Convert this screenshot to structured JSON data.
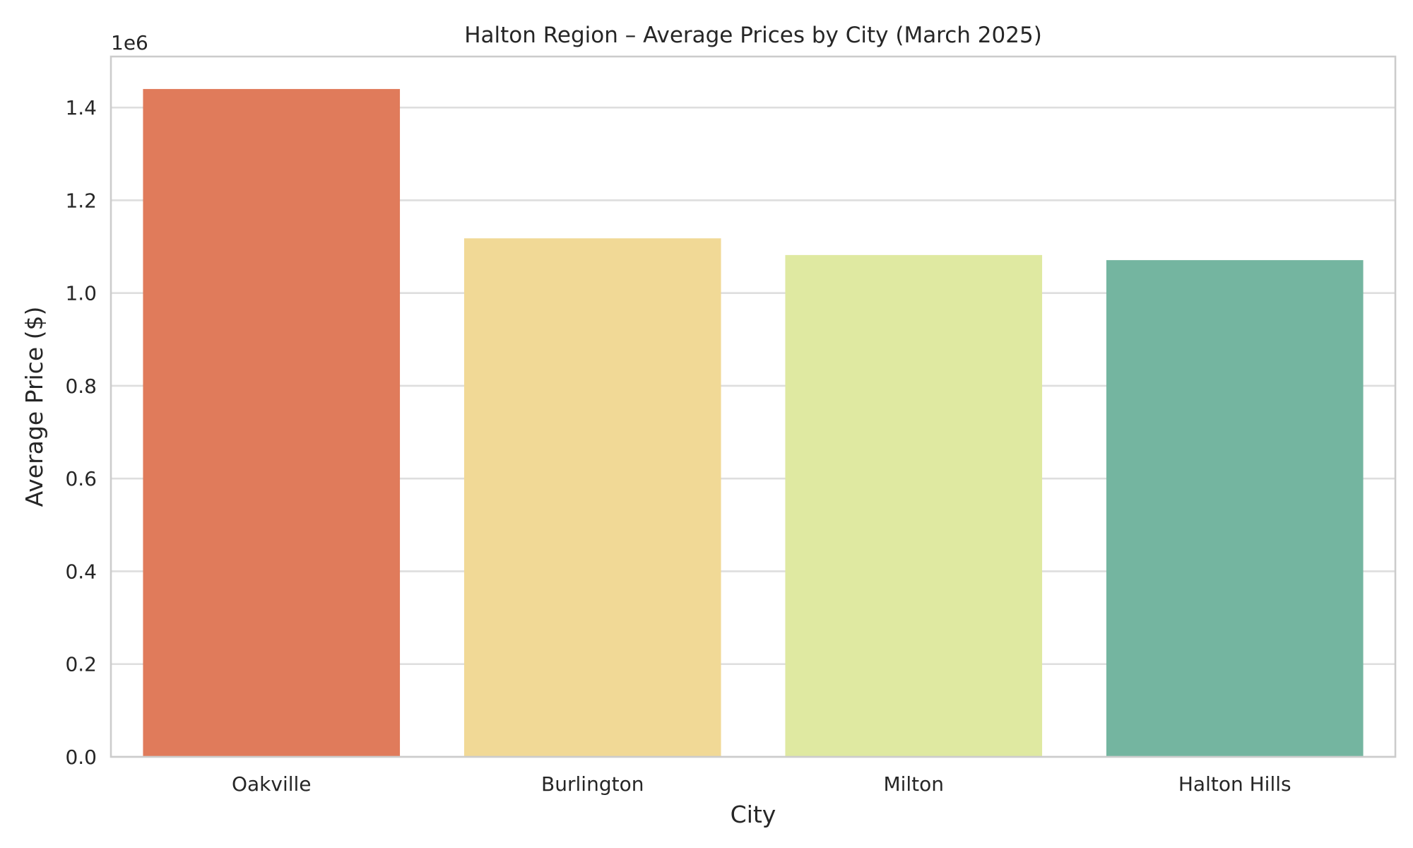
{
  "chart_data": {
    "type": "bar",
    "title": "Halton Region – Average Prices by City (March 2025)",
    "xlabel": "City",
    "ylabel": "Average Price ($)",
    "y_offset_label": "1e6",
    "categories": [
      "Oakville",
      "Burlington",
      "Milton",
      "Halton Hills"
    ],
    "values": [
      1440000,
      1118000,
      1082000,
      1071000
    ],
    "colors": [
      "#e07b5b",
      "#f1d996",
      "#dfe9a1",
      "#74b5a0"
    ],
    "ylim": [
      0,
      1510000
    ],
    "yticks": [
      0,
      200000,
      400000,
      600000,
      800000,
      1000000,
      1200000,
      1400000
    ],
    "ytick_labels": [
      "0.0",
      "0.2",
      "0.4",
      "0.6",
      "0.8",
      "1.0",
      "1.2",
      "1.4"
    ],
    "grid": "horizontal",
    "legend": "none"
  }
}
